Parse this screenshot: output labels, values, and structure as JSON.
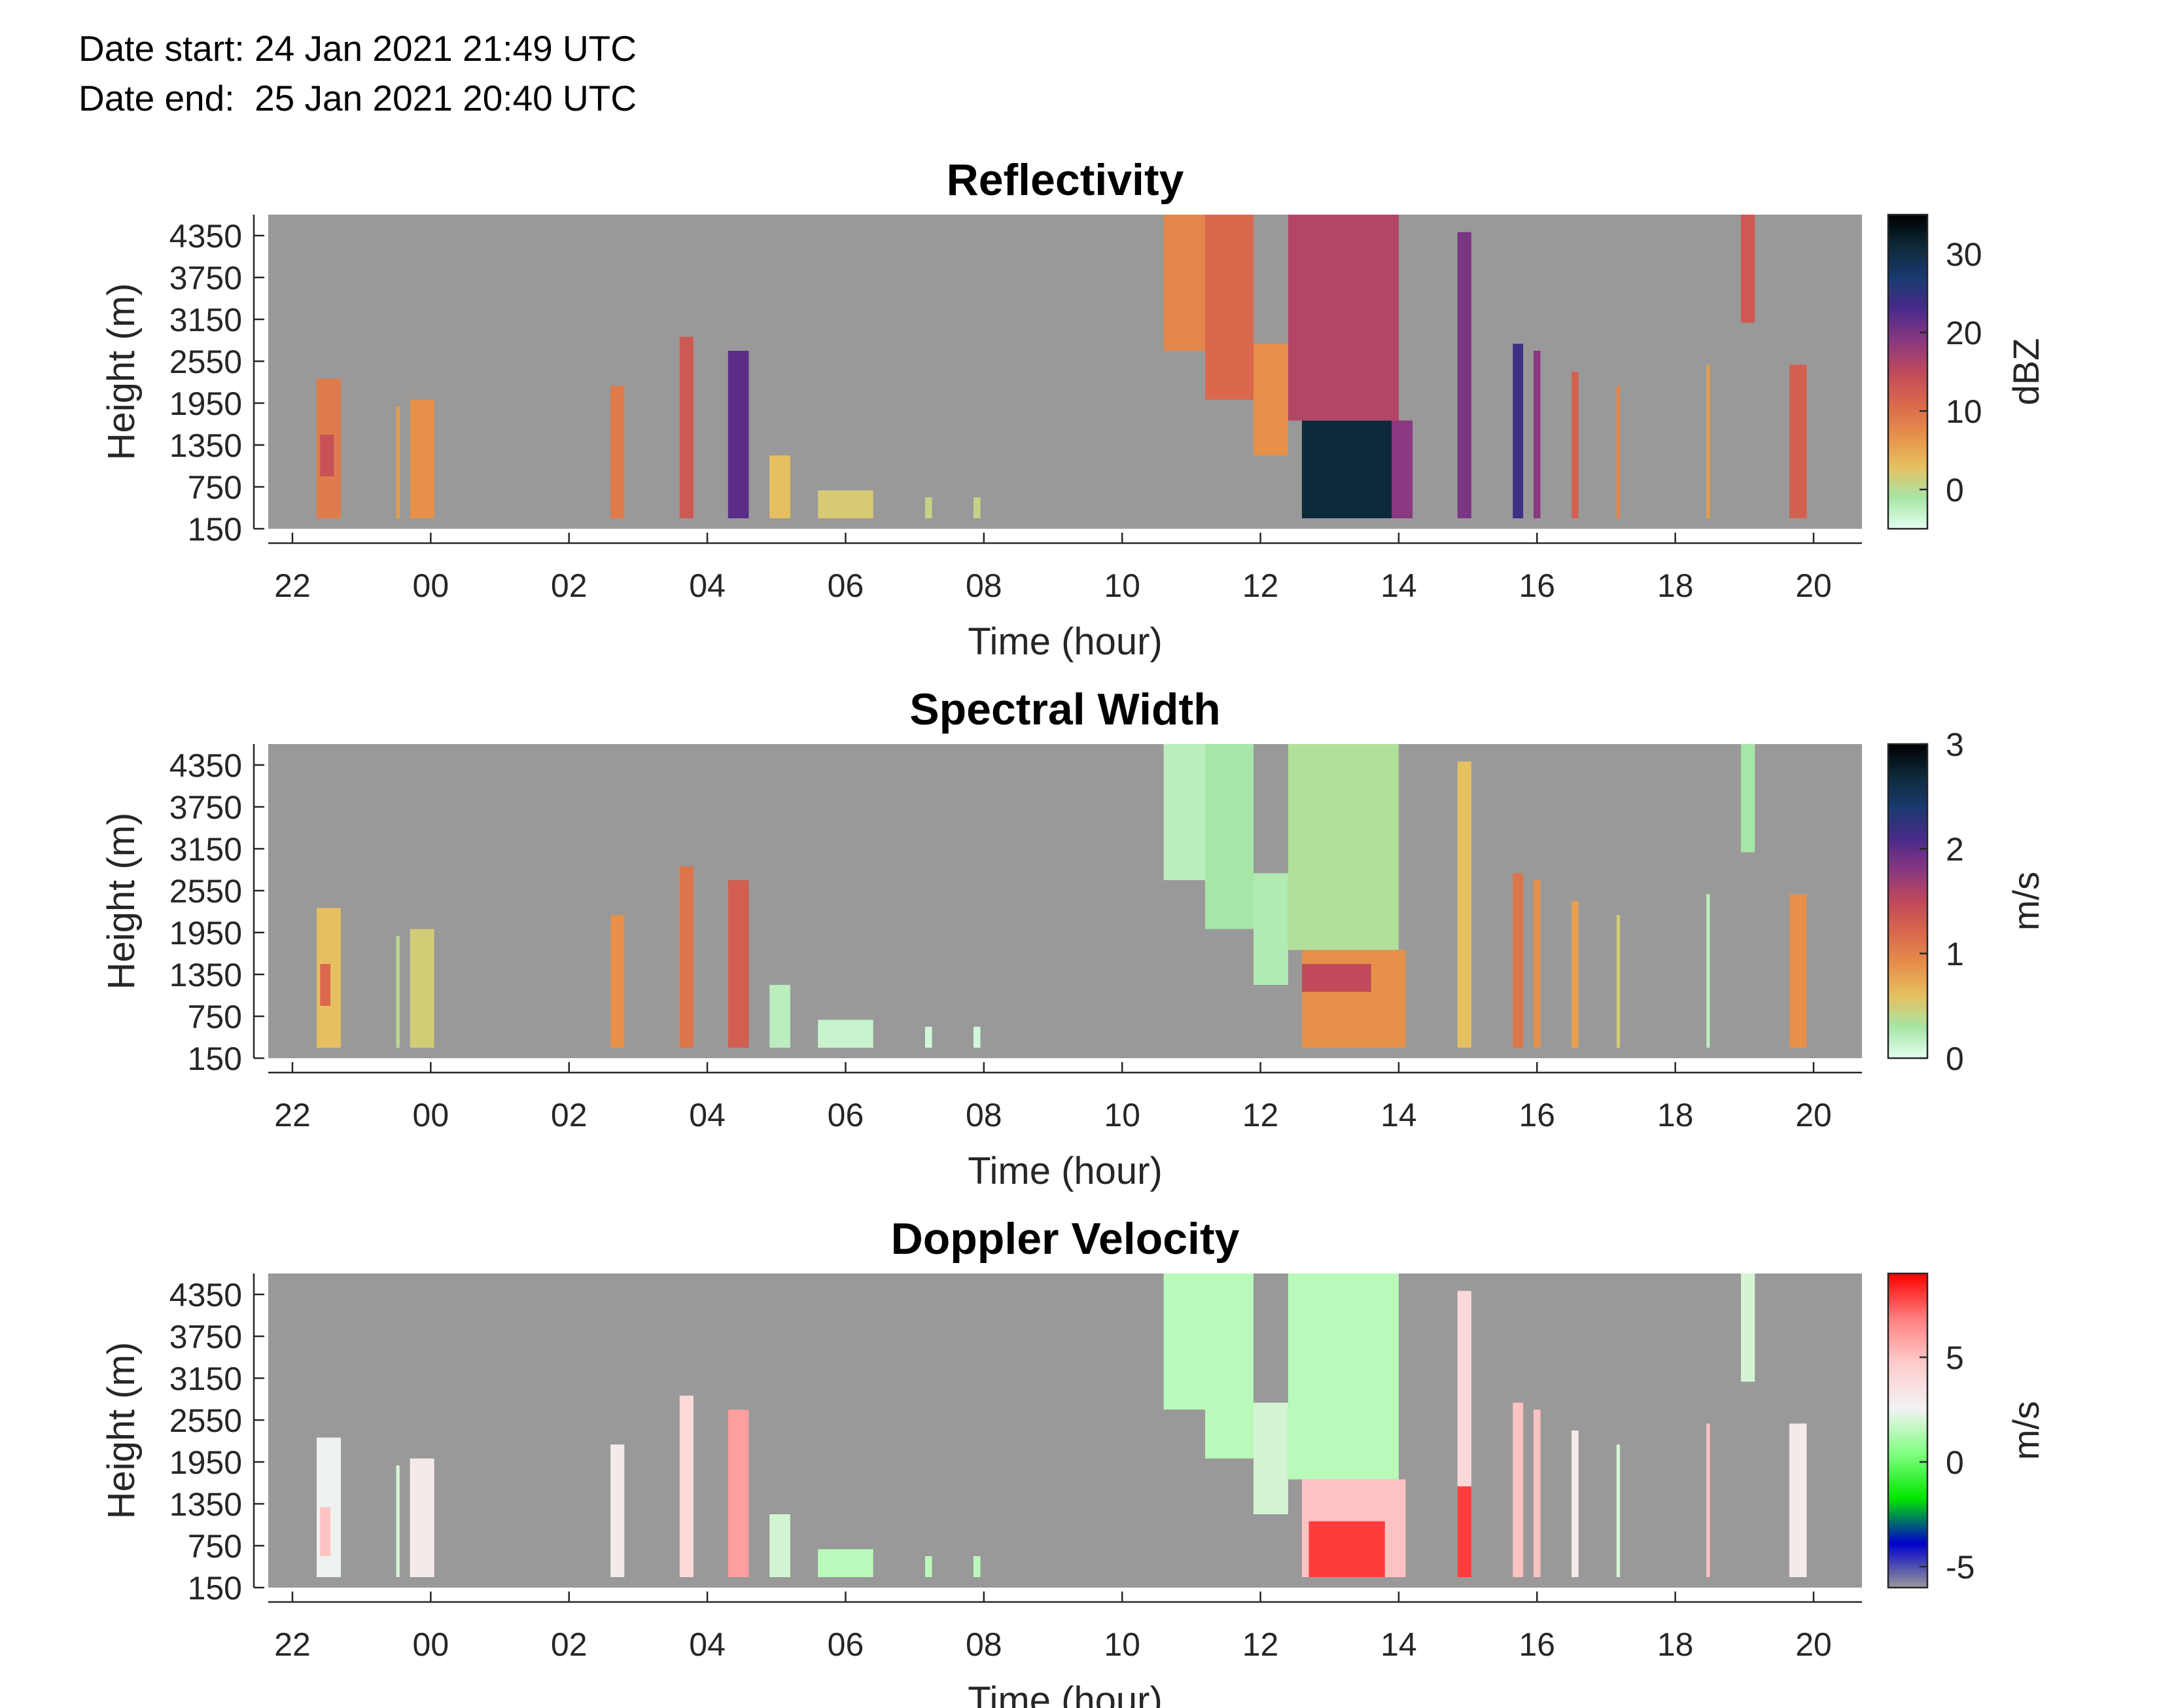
{
  "header": {
    "start_label": "Date start:",
    "start_value": "24 Jan 2021 21:49 UTC",
    "end_label": "Date end:",
    "end_value": "25 Jan 2021 20:40 UTC"
  },
  "chart_data": [
    {
      "type": "heatmap",
      "title": "Reflectivity",
      "xlabel": "Time (hour)",
      "ylabel": "Height (m)",
      "colorbar_label": "dBZ",
      "colormap": [
        "#e6fff2",
        "#a6e6a6",
        "#e6c060",
        "#e6904a",
        "#d9684c",
        "#c04a5a",
        "#8a3880",
        "#4a2a8a",
        "#1a3a70",
        "#0d2a3a",
        "#000000"
      ],
      "colorbar_ticks": [
        "0",
        "10",
        "20",
        "30"
      ],
      "colorbar_tick_values": [
        0,
        10,
        20,
        30
      ],
      "clim": [
        -5,
        35
      ],
      "x_ticks": [
        "22",
        "00",
        "02",
        "04",
        "06",
        "08",
        "10",
        "12",
        "14",
        "16",
        "18",
        "20"
      ],
      "y_ticks": [
        "150",
        "750",
        "1350",
        "1950",
        "2550",
        "3150",
        "3750",
        "4350"
      ],
      "y_tick_values": [
        150,
        750,
        1350,
        1950,
        2550,
        3150,
        3750,
        4350
      ],
      "ylim": [
        150,
        4650
      ],
      "xlim": [
        -2.35,
        20.7
      ],
      "background_color": "#999999",
      "cells": [
        {
          "x": [
            -1.65,
            -1.3
          ],
          "y": [
            300,
            2300
          ],
          "v": 9
        },
        {
          "x": [
            -1.6,
            -1.4
          ],
          "y": [
            900,
            1500
          ],
          "v": 14
        },
        {
          "x": [
            -0.5,
            -0.45
          ],
          "y": [
            300,
            1900
          ],
          "v": 6
        },
        {
          "x": [
            -0.3,
            0.05
          ],
          "y": [
            300,
            2000
          ],
          "v": 7
        },
        {
          "x": [
            2.6,
            2.8
          ],
          "y": [
            300,
            2200
          ],
          "v": 9
        },
        {
          "x": [
            3.6,
            3.8
          ],
          "y": [
            300,
            2900
          ],
          "v": 13
        },
        {
          "x": [
            4.3,
            4.6
          ],
          "y": [
            300,
            2700
          ],
          "v": 22
        },
        {
          "x": [
            4.9,
            5.2
          ],
          "y": [
            300,
            1200
          ],
          "v": 3
        },
        {
          "x": [
            5.6,
            6.4
          ],
          "y": [
            300,
            700
          ],
          "v": 2
        },
        {
          "x": [
            7.15,
            7.25
          ],
          "y": [
            300,
            600
          ],
          "v": 1
        },
        {
          "x": [
            7.85,
            7.95
          ],
          "y": [
            300,
            600
          ],
          "v": 1
        },
        {
          "x": [
            10.6,
            11.2
          ],
          "y": [
            2700,
            4650
          ],
          "v": 8
        },
        {
          "x": [
            11.2,
            11.9
          ],
          "y": [
            2000,
            4650
          ],
          "v": 11
        },
        {
          "x": [
            11.9,
            12.4
          ],
          "y": [
            1200,
            2800
          ],
          "v": 7
        },
        {
          "x": [
            12.4,
            14.0
          ],
          "y": [
            1700,
            4650
          ],
          "v": 16
        },
        {
          "x": [
            12.6,
            13.9
          ],
          "y": [
            300,
            1700
          ],
          "v": 31
        },
        {
          "x": [
            13.9,
            14.2
          ],
          "y": [
            300,
            1700
          ],
          "v": 19
        },
        {
          "x": [
            14.85,
            15.05
          ],
          "y": [
            300,
            4400
          ],
          "v": 20
        },
        {
          "x": [
            15.65,
            15.8
          ],
          "y": [
            300,
            2800
          ],
          "v": 24
        },
        {
          "x": [
            15.95,
            16.05
          ],
          "y": [
            300,
            2700
          ],
          "v": 19
        },
        {
          "x": [
            16.5,
            16.6
          ],
          "y": [
            300,
            2400
          ],
          "v": 12
        },
        {
          "x": [
            17.15,
            17.2
          ],
          "y": [
            300,
            2200
          ],
          "v": 8
        },
        {
          "x": [
            18.45,
            18.5
          ],
          "y": [
            300,
            2500
          ],
          "v": 6
        },
        {
          "x": [
            18.95,
            19.15
          ],
          "y": [
            3100,
            4650
          ],
          "v": 13
        },
        {
          "x": [
            19.65,
            19.9
          ],
          "y": [
            300,
            2500
          ],
          "v": 12
        }
      ]
    },
    {
      "type": "heatmap",
      "title": "Spectral Width",
      "xlabel": "Time (hour)",
      "ylabel": "Height (m)",
      "colorbar_label": "m/s",
      "colormap": [
        "#e6fff2",
        "#a6e6a6",
        "#e6c060",
        "#e6904a",
        "#d9684c",
        "#c04a5a",
        "#8a3880",
        "#4a2a8a",
        "#1a3a70",
        "#0d2a3a",
        "#000000"
      ],
      "colorbar_ticks": [
        "0",
        "1",
        "2",
        "3"
      ],
      "colorbar_tick_values": [
        0,
        1,
        2,
        3
      ],
      "clim": [
        0,
        3
      ],
      "x_ticks": [
        "22",
        "00",
        "02",
        "04",
        "06",
        "08",
        "10",
        "12",
        "14",
        "16",
        "18",
        "20"
      ],
      "y_ticks": [
        "150",
        "750",
        "1350",
        "1950",
        "2550",
        "3150",
        "3750",
        "4350"
      ],
      "y_tick_values": [
        150,
        750,
        1350,
        1950,
        2550,
        3150,
        3750,
        4350
      ],
      "ylim": [
        150,
        4650
      ],
      "xlim": [
        -2.35,
        20.7
      ],
      "background_color": "#999999",
      "cells": [
        {
          "x": [
            -1.65,
            -1.3
          ],
          "y": [
            300,
            2300
          ],
          "v": 0.6
        },
        {
          "x": [
            -1.6,
            -1.45
          ],
          "y": [
            900,
            1500
          ],
          "v": 1.2
        },
        {
          "x": [
            -0.5,
            -0.45
          ],
          "y": [
            300,
            1900
          ],
          "v": 0.4
        },
        {
          "x": [
            -0.3,
            0.05
          ],
          "y": [
            300,
            2000
          ],
          "v": 0.5
        },
        {
          "x": [
            2.6,
            2.8
          ],
          "y": [
            300,
            2200
          ],
          "v": 0.9
        },
        {
          "x": [
            3.6,
            3.8
          ],
          "y": [
            300,
            2900
          ],
          "v": 1.1
        },
        {
          "x": [
            4.3,
            4.6
          ],
          "y": [
            300,
            2700
          ],
          "v": 1.3
        },
        {
          "x": [
            4.9,
            5.2
          ],
          "y": [
            300,
            1200
          ],
          "v": 0.2
        },
        {
          "x": [
            5.6,
            6.4
          ],
          "y": [
            300,
            700
          ],
          "v": 0.15
        },
        {
          "x": [
            7.15,
            7.25
          ],
          "y": [
            300,
            600
          ],
          "v": 0.1
        },
        {
          "x": [
            7.85,
            7.95
          ],
          "y": [
            300,
            600
          ],
          "v": 0.1
        },
        {
          "x": [
            10.6,
            11.2
          ],
          "y": [
            2700,
            4650
          ],
          "v": 0.2
        },
        {
          "x": [
            11.2,
            11.9
          ],
          "y": [
            2000,
            4650
          ],
          "v": 0.3
        },
        {
          "x": [
            11.9,
            12.4
          ],
          "y": [
            1200,
            2800
          ],
          "v": 0.25
        },
        {
          "x": [
            12.4,
            14.0
          ],
          "y": [
            1700,
            4650
          ],
          "v": 0.35
        },
        {
          "x": [
            12.6,
            14.1
          ],
          "y": [
            300,
            1700
          ],
          "v": 0.9
        },
        {
          "x": [
            12.6,
            13.6
          ],
          "y": [
            1100,
            1500
          ],
          "v": 1.5
        },
        {
          "x": [
            14.85,
            15.05
          ],
          "y": [
            300,
            4400
          ],
          "v": 0.6
        },
        {
          "x": [
            15.65,
            15.8
          ],
          "y": [
            300,
            2800
          ],
          "v": 1.1
        },
        {
          "x": [
            15.95,
            16.05
          ],
          "y": [
            300,
            2700
          ],
          "v": 0.9
        },
        {
          "x": [
            16.5,
            16.6
          ],
          "y": [
            300,
            2400
          ],
          "v": 0.8
        },
        {
          "x": [
            17.15,
            17.2
          ],
          "y": [
            300,
            2200
          ],
          "v": 0.5
        },
        {
          "x": [
            18.45,
            18.5
          ],
          "y": [
            300,
            2500
          ],
          "v": 0.2
        },
        {
          "x": [
            18.95,
            19.15
          ],
          "y": [
            3100,
            4650
          ],
          "v": 0.3
        },
        {
          "x": [
            19.65,
            19.9
          ],
          "y": [
            300,
            2500
          ],
          "v": 0.9
        }
      ]
    },
    {
      "type": "heatmap",
      "title": "Doppler Velocity",
      "xlabel": "Time (hour)",
      "ylabel": "Height (m)",
      "colorbar_label": "m/s",
      "colormap": [
        "#999999",
        "#0000cc",
        "#00e600",
        "#80ff80",
        "#f2f2f2",
        "#ffcccc",
        "#ff8080",
        "#ff0000"
      ],
      "colorbar_ticks": [
        "-5",
        "0",
        "5"
      ],
      "colorbar_tick_values": [
        -5,
        0,
        5
      ],
      "clim": [
        -6,
        9
      ],
      "x_ticks": [
        "22",
        "00",
        "02",
        "04",
        "06",
        "08",
        "10",
        "12",
        "14",
        "16",
        "18",
        "20"
      ],
      "y_ticks": [
        "150",
        "750",
        "1350",
        "1950",
        "2550",
        "3150",
        "3750",
        "4350"
      ],
      "y_tick_values": [
        150,
        750,
        1350,
        1950,
        2550,
        3150,
        3750,
        4350
      ],
      "ylim": [
        150,
        4650
      ],
      "xlim": [
        -2.35,
        20.7
      ],
      "background_color": "#999999",
      "cells": [
        {
          "x": [
            -1.65,
            -1.3
          ],
          "y": [
            300,
            2300
          ],
          "v": 2.5
        },
        {
          "x": [
            -1.6,
            -1.45
          ],
          "y": [
            600,
            1300
          ],
          "v": 5
        },
        {
          "x": [
            -0.5,
            -0.45
          ],
          "y": [
            300,
            1900
          ],
          "v": 2
        },
        {
          "x": [
            -0.3,
            0.05
          ],
          "y": [
            300,
            2000
          ],
          "v": 3
        },
        {
          "x": [
            2.6,
            2.8
          ],
          "y": [
            300,
            2200
          ],
          "v": 3
        },
        {
          "x": [
            3.6,
            3.8
          ],
          "y": [
            300,
            2900
          ],
          "v": 4
        },
        {
          "x": [
            4.3,
            4.6
          ],
          "y": [
            300,
            2700
          ],
          "v": 6
        },
        {
          "x": [
            4.9,
            5.2
          ],
          "y": [
            300,
            1200
          ],
          "v": 2
        },
        {
          "x": [
            5.6,
            6.4
          ],
          "y": [
            300,
            700
          ],
          "v": 1.5
        },
        {
          "x": [
            7.15,
            7.25
          ],
          "y": [
            300,
            600
          ],
          "v": 1.5
        },
        {
          "x": [
            7.85,
            7.95
          ],
          "y": [
            300,
            600
          ],
          "v": 1.5
        },
        {
          "x": [
            10.6,
            11.2
          ],
          "y": [
            2700,
            4650
          ],
          "v": 1.5
        },
        {
          "x": [
            11.2,
            11.9
          ],
          "y": [
            2000,
            4650
          ],
          "v": 1.5
        },
        {
          "x": [
            11.9,
            12.4
          ],
          "y": [
            1200,
            2800
          ],
          "v": 2
        },
        {
          "x": [
            12.4,
            14.0
          ],
          "y": [
            1700,
            4650
          ],
          "v": 1.5
        },
        {
          "x": [
            12.6,
            14.1
          ],
          "y": [
            300,
            1700
          ],
          "v": 5
        },
        {
          "x": [
            12.7,
            13.8
          ],
          "y": [
            300,
            1100
          ],
          "v": 8
        },
        {
          "x": [
            14.85,
            15.05
          ],
          "y": [
            300,
            4400
          ],
          "v": 4
        },
        {
          "x": [
            14.85,
            15.05
          ],
          "y": [
            300,
            1600
          ],
          "v": 8
        },
        {
          "x": [
            15.65,
            15.8
          ],
          "y": [
            300,
            2800
          ],
          "v": 5
        },
        {
          "x": [
            15.95,
            16.05
          ],
          "y": [
            300,
            2700
          ],
          "v": 5
        },
        {
          "x": [
            16.5,
            16.6
          ],
          "y": [
            300,
            2400
          ],
          "v": 3
        },
        {
          "x": [
            17.15,
            17.2
          ],
          "y": [
            300,
            2200
          ],
          "v": 2
        },
        {
          "x": [
            18.45,
            18.5
          ],
          "y": [
            300,
            2500
          ],
          "v": 5
        },
        {
          "x": [
            18.95,
            19.15
          ],
          "y": [
            3100,
            4650
          ],
          "v": 2
        },
        {
          "x": [
            19.65,
            19.9
          ],
          "y": [
            300,
            2500
          ],
          "v": 3
        }
      ]
    }
  ]
}
